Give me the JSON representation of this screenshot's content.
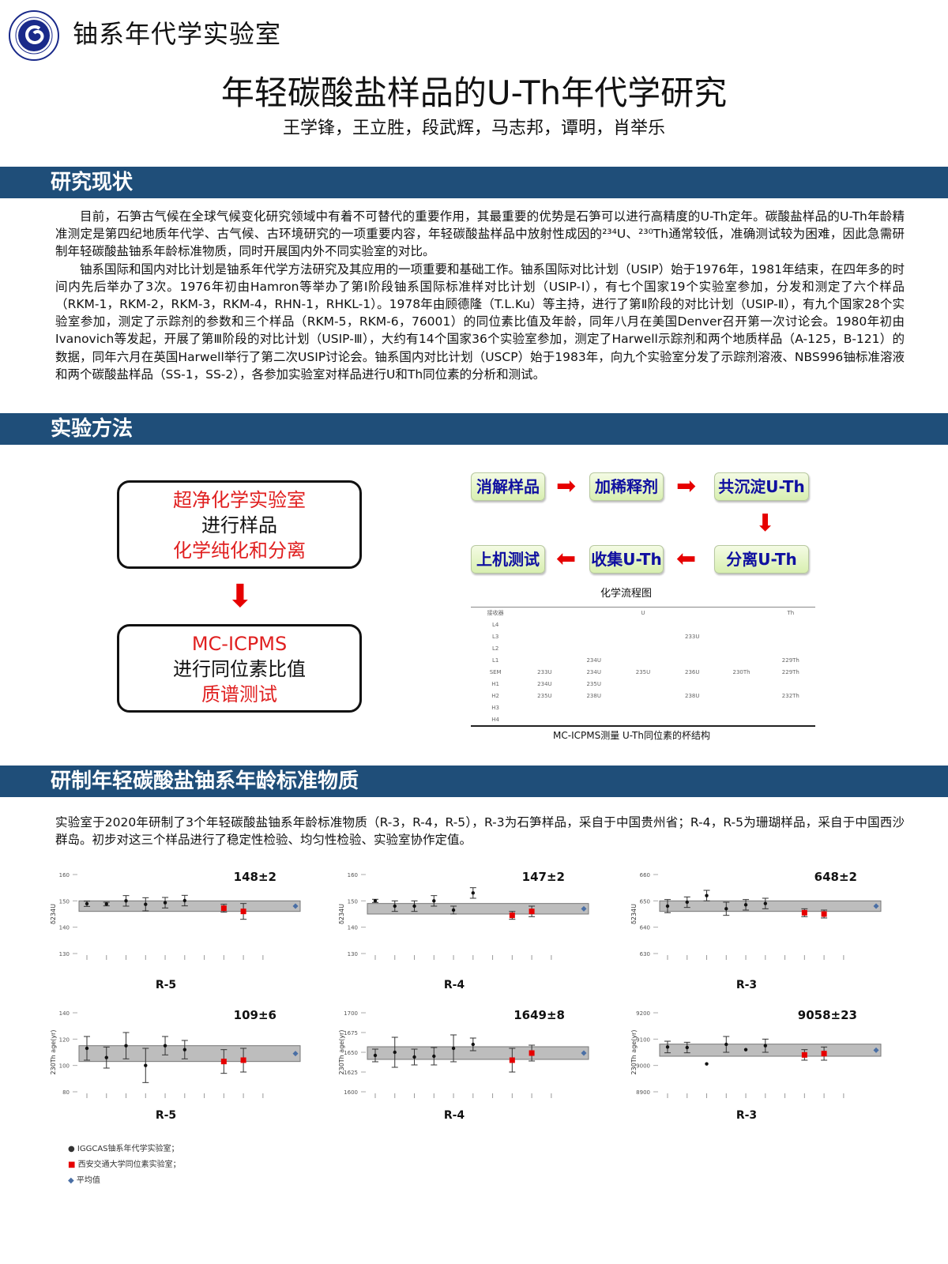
{
  "header": {
    "lab_name": "铀系年代学实验室",
    "title": "年轻碳酸盐样品的U-Th年代学研究",
    "authors": "王学锋，王立胜，段武辉，马志邦，谭明，肖举乐"
  },
  "colors": {
    "band": "#1f4e79",
    "accent_red": "#e02020",
    "flow_text": "#1010a0",
    "iggcas": "#111111",
    "xjtu": "#e60000",
    "mean": "#4a6fa5"
  },
  "sections": {
    "status": {
      "heading": "研究现状",
      "paragraphs": [
        "目前，石笋古气候在全球气候变化研究领域中有着不可替代的重要作用，其最重要的优势是石笋可以进行高精度的U-Th定年。碳酸盐样品的U-Th年龄精准测定是第四纪地质年代学、古气候、古环境研究的一项重要内容，年轻碳酸盐样品中放射性成因的²³⁴U、²³⁰Th通常较低，准确测试较为困难，因此急需研制年轻碳酸盐铀系年龄标准物质，同时开展国内外不同实验室的对比。",
        "铀系国际和国内对比计划是铀系年代学方法研究及其应用的一项重要和基础工作。铀系国际对比计划（USIP）始于1976年，1981年结束，在四年多的时间内先后举办了3次。1976年初由Hamron等举办了第Ⅰ阶段铀系国际标准样对比计划（USIP-Ⅰ），有七个国家19个实验室参加，分发和测定了六个样品（RKM-1，RKM-2，RKM-3，RKM-4，RHN-1，RHKL-1）。1978年由顾德隆（T.L.Ku）等主持，进行了第Ⅱ阶段的对比计划（USIP-Ⅱ），有九个国家28个实验室参加，测定了示踪剂的参数和三个样品（RKM-5，RKM-6，76001）的同位素比值及年龄，同年八月在美国Denver召开第一次讨论会。1980年初由Ivanovich等发起，开展了第Ⅲ阶段的对比计划（USIP-Ⅲ），大约有14个国家36个实验室参加，测定了Harwell示踪剂和两个地质样品（A-125，B-121）的数据，同年六月在英国Harwell举行了第二次USIP讨论会。铀系国内对比计划（USCP）始于1983年，向九个实验室分发了示踪剂溶液、NBS996铀标准溶液和两个碳酸盐样品（SS-1，SS-2），各参加实验室对样品进行U和Th同位素的分析和测试。"
      ]
    },
    "method": {
      "heading": "实验方法",
      "box1": {
        "line1": "超净化学实验室",
        "line2": "进行样品",
        "line3": "化学纯化和分离"
      },
      "box2": {
        "line1": "MC-ICPMS",
        "line2": "进行同位素比值",
        "line3": "质谱测试"
      },
      "flow": [
        "消解样品",
        "加稀释剂",
        "共沉淀U-Th",
        "分离U-Th",
        "收集U-Th",
        "上机测试"
      ],
      "flow_caption": "化学流程图",
      "cup_table": {
        "header": [
          "接收器",
          "",
          "",
          "U",
          "",
          "",
          "Th"
        ],
        "rows": [
          [
            "L4",
            "",
            "",
            "",
            "",
            "",
            ""
          ],
          [
            "L3",
            "",
            "",
            "",
            "233U",
            "",
            ""
          ],
          [
            "L2",
            "",
            "",
            "",
            "",
            "",
            ""
          ],
          [
            "L1",
            "",
            "234U",
            "",
            "",
            "",
            "229Th"
          ],
          [
            "SEM",
            "233U",
            "234U",
            "235U",
            "236U",
            "230Th",
            "229Th"
          ],
          [
            "H1",
            "234U",
            "235U",
            "",
            "",
            "",
            ""
          ],
          [
            "H2",
            "235U",
            "238U",
            "",
            "238U",
            "",
            "232Th"
          ],
          [
            "H3",
            "",
            "",
            "",
            "",
            "",
            ""
          ],
          [
            "H4",
            "",
            "",
            "",
            "",
            "",
            ""
          ]
        ]
      },
      "cup_caption": "MC-ICPMS测量 U-Th同位素的杯结构"
    },
    "standards": {
      "heading": "研制年轻碳酸盐铀系年龄标准物质",
      "text": "实验室于2020年研制了3个年轻碳酸盐铀系年龄标准物质（R-3，R-4，R-5），R-3为石笋样品，采自于中国贵州省；R-4，R-5为珊瑚样品，采自于中国西沙群岛。初步对这三个样品进行了稳定性检验、均匀性检验、实验室协作定值。",
      "legend": [
        "IGGCAS铀系年代学实验室；",
        "西安交通大学同位素实验室；",
        "平均值"
      ]
    }
  },
  "chart_data": [
    {
      "type": "scatter",
      "sample": "R-5",
      "ylabel": "δ234U",
      "value_label": "148±2",
      "ylim": [
        130,
        160
      ],
      "yticks": [
        160,
        150,
        140,
        130
      ],
      "mean": 148,
      "unc": 2,
      "iggcas": [
        [
          1,
          148.9,
          1
        ],
        [
          2,
          148.8,
          0.7
        ],
        [
          3,
          150,
          2
        ],
        [
          4,
          148.7,
          2.5
        ],
        [
          5,
          149.3,
          2
        ],
        [
          6,
          150.1,
          2
        ]
      ],
      "xjtu": [
        [
          8,
          147.2,
          1.5
        ],
        [
          9,
          146,
          3
        ]
      ]
    },
    {
      "type": "scatter",
      "sample": "R-4",
      "ylabel": "δ234U",
      "value_label": "147±2",
      "ylim": [
        130,
        160
      ],
      "yticks": [
        160,
        150,
        140,
        130
      ],
      "mean": 147,
      "unc": 2,
      "iggcas": [
        [
          1,
          150,
          0.6
        ],
        [
          2,
          148,
          2
        ],
        [
          3,
          148,
          2
        ],
        [
          4,
          150,
          2
        ],
        [
          5,
          146.5,
          1.5
        ],
        [
          6,
          153,
          2
        ]
      ],
      "xjtu": [
        [
          8,
          144.5,
          1.5
        ],
        [
          9,
          146,
          2
        ]
      ]
    },
    {
      "type": "scatter",
      "sample": "R-3",
      "ylabel": "δ234U",
      "value_label": "648±2",
      "ylim": [
        630,
        660
      ],
      "yticks": [
        660,
        650,
        640,
        630
      ],
      "mean": 648,
      "unc": 2,
      "iggcas": [
        [
          1,
          648,
          2.5
        ],
        [
          2,
          649.5,
          2
        ],
        [
          3,
          652,
          2
        ],
        [
          4,
          647,
          2.5
        ],
        [
          5,
          648.5,
          2
        ],
        [
          6,
          649,
          2
        ]
      ],
      "xjtu": [
        [
          8,
          645.5,
          1.5
        ],
        [
          9,
          645,
          1.5
        ]
      ]
    },
    {
      "type": "scatter",
      "sample": "R-5",
      "ylabel": "230Th age(yr)",
      "value_label": "109±6",
      "ylim": [
        80,
        140
      ],
      "yticks": [
        140,
        120,
        100,
        80
      ],
      "mean": 109,
      "unc": 6,
      "iggcas": [
        [
          1,
          113,
          9
        ],
        [
          2,
          106,
          8
        ],
        [
          3,
          115,
          10
        ],
        [
          4,
          100,
          13
        ],
        [
          5,
          115,
          7
        ],
        [
          6,
          112,
          7
        ]
      ],
      "xjtu": [
        [
          8,
          103,
          9
        ],
        [
          9,
          104,
          9
        ]
      ]
    },
    {
      "type": "scatter",
      "sample": "R-4",
      "ylabel": "230Th age(yr)",
      "value_label": "1649±8",
      "ylim": [
        1600,
        1700
      ],
      "yticks": [
        1700,
        1675,
        1650,
        1625,
        1600
      ],
      "mean": 1649,
      "unc": 8,
      "iggcas": [
        [
          1,
          1646,
          8
        ],
        [
          2,
          1650,
          19
        ],
        [
          3,
          1644,
          10
        ],
        [
          4,
          1645,
          11
        ],
        [
          5,
          1655,
          17
        ],
        [
          6,
          1660,
          8
        ]
      ],
      "xjtu": [
        [
          8,
          1640,
          15
        ],
        [
          9,
          1649,
          10
        ]
      ]
    },
    {
      "type": "scatter",
      "sample": "R-3",
      "ylabel": "230Th age(yr)",
      "value_label": "9058±23",
      "ylim": [
        8900,
        9200
      ],
      "yticks": [
        9200,
        9100,
        9000,
        8900
      ],
      "mean": 9058,
      "unc": 23,
      "iggcas": [
        [
          1,
          9070,
          22
        ],
        [
          2,
          9068,
          20
        ],
        [
          3,
          9006,
          0
        ],
        [
          4,
          9080,
          30
        ],
        [
          5,
          9060,
          0
        ],
        [
          6,
          9075,
          25
        ]
      ],
      "xjtu": [
        [
          8,
          9040,
          20
        ],
        [
          9,
          9045,
          25
        ]
      ]
    }
  ]
}
